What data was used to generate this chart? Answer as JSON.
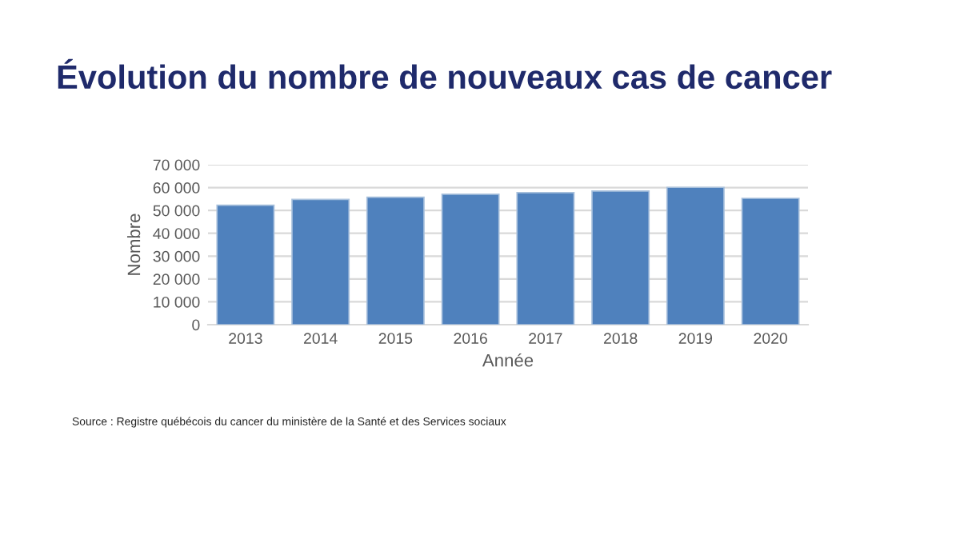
{
  "chart_data": {
    "type": "bar",
    "title": "Évolution du nombre de nouveaux cas de cancer",
    "xlabel": "Année",
    "ylabel": "Nombre",
    "categories": [
      "2013",
      "2014",
      "2015",
      "2016",
      "2017",
      "2018",
      "2019",
      "2020"
    ],
    "values": [
      52300,
      54800,
      55800,
      57100,
      57800,
      58500,
      60100,
      55300
    ],
    "color": "#4f81bd",
    "ylim": [
      0,
      70000
    ],
    "yticks": [
      0,
      {
        "value": 10000,
        "label": "10 000"
      },
      {
        "value": 20000,
        "label": "20 000"
      },
      {
        "value": 30000,
        "label": "30 000"
      },
      {
        "value": 40000,
        "label": "40 000"
      },
      {
        "value": 50000,
        "label": "50 000"
      },
      {
        "value": 60000,
        "label": "60 000"
      },
      {
        "value": 70000,
        "label": "70 000"
      }
    ],
    "grid": "y",
    "annotations": [
      "Source : Registre québécois du cancer du ministère de la Santé et des Services sociaux"
    ]
  }
}
